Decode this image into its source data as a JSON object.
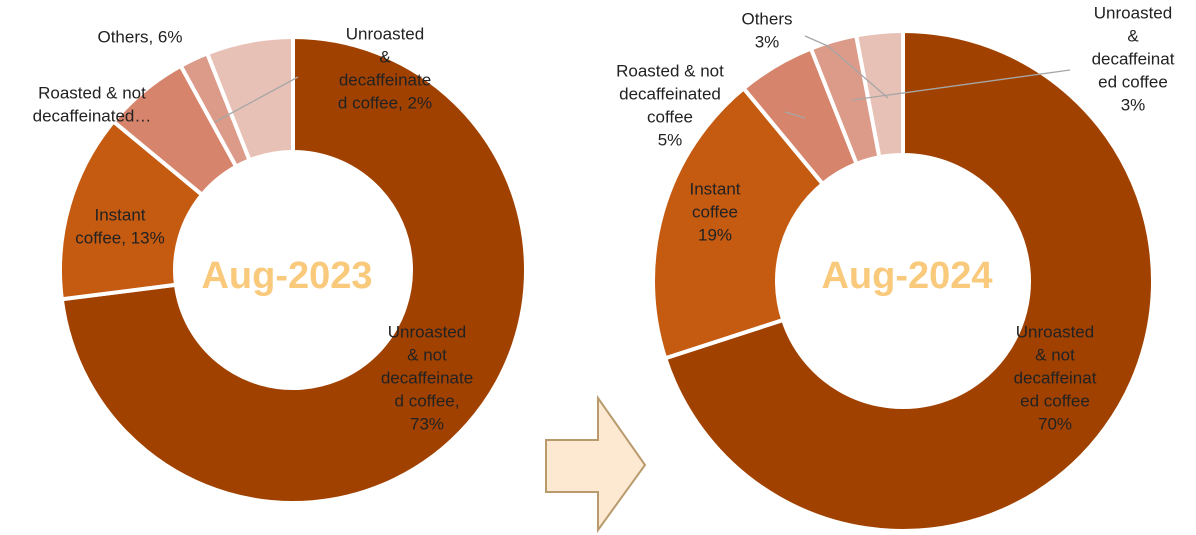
{
  "chart_data": [
    {
      "type": "donut",
      "title": "Aug-2023",
      "values": [
        73,
        13,
        6,
        2,
        6
      ],
      "value_labels": [
        [
          "Unroasted",
          "& not",
          "decaffeinate",
          "d coffee,",
          "73%"
        ],
        [
          "Instant",
          "coffee, 13%"
        ],
        [
          "Roasted & not",
          "decaffeinated…"
        ],
        [
          "Unroasted",
          "&",
          "decaffeinate",
          "d coffee, 2%"
        ],
        [
          "Others, 6%"
        ]
      ],
      "colors": [
        "#a14100",
        "#c55a11",
        "#d6846b",
        "#dc9a89",
        "#e8c1b6"
      ]
    },
    {
      "type": "donut",
      "title": "Aug-2024",
      "values": [
        70,
        19,
        5,
        3,
        3
      ],
      "value_labels": [
        [
          "Unroasted",
          "& not",
          "decaffeinat",
          "ed coffee",
          "70%"
        ],
        [
          "Instant",
          "coffee",
          "19%"
        ],
        [
          "Roasted & not",
          "decaffeinated",
          "coffee",
          "5%"
        ],
        [
          "Unroasted",
          "&",
          "decaffeinat",
          "ed coffee",
          "3%"
        ],
        [
          "Others",
          "3%"
        ]
      ],
      "colors": [
        "#a14100",
        "#c55a11",
        "#d6846b",
        "#dc9a89",
        "#e8c1b6"
      ]
    }
  ]
}
